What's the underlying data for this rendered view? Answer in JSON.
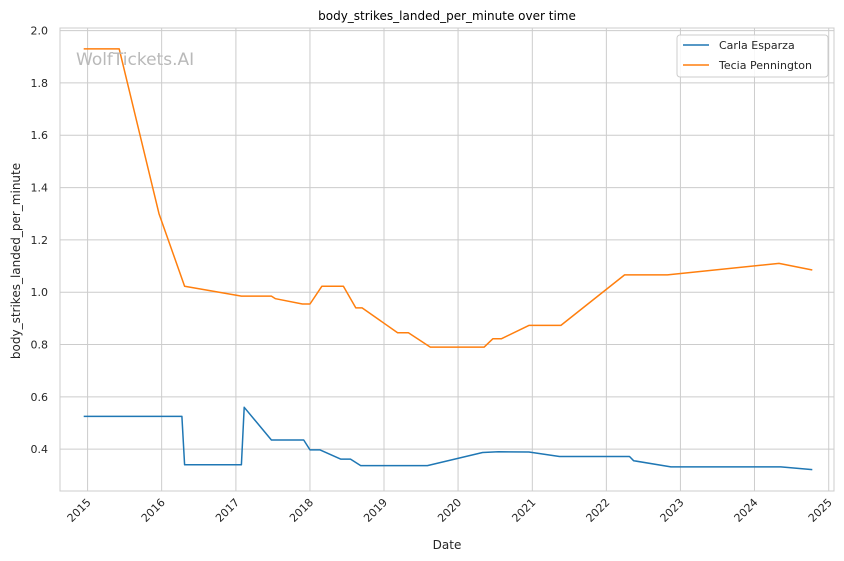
{
  "chart_data": {
    "type": "line",
    "title": "body_strikes_landed_per_minute over time",
    "xlabel": "Date",
    "ylabel": "body_strikes_landed_per_minute",
    "watermark": "WolfTickets.AI",
    "xlim": [
      "2014-08-18",
      "2025-01-27"
    ],
    "ylim": [
      0.24,
      2.01
    ],
    "x_ticks": [
      "2015",
      "2016",
      "2017",
      "2018",
      "2019",
      "2020",
      "2021",
      "2022",
      "2023",
      "2024",
      "2025"
    ],
    "y_ticks": [
      "0.4",
      "0.6",
      "0.8",
      "1.0",
      "1.2",
      "1.4",
      "1.6",
      "1.8",
      "2.0"
    ],
    "grid": true,
    "legend_position": "top-right",
    "series": [
      {
        "name": "Carla Esparza",
        "color": "#1f77b4",
        "points": [
          [
            "2014-12-13",
            0.525
          ],
          [
            "2016-04-10",
            0.525
          ],
          [
            "2016-04-23",
            0.34
          ],
          [
            "2017-01-28",
            0.34
          ],
          [
            "2017-02-11",
            0.56
          ],
          [
            "2017-06-25",
            0.435
          ],
          [
            "2017-12-01",
            0.435
          ],
          [
            "2018-01-01",
            0.397
          ],
          [
            "2018-02-20",
            0.397
          ],
          [
            "2018-06-01",
            0.362
          ],
          [
            "2018-07-20",
            0.362
          ],
          [
            "2018-09-08",
            0.337
          ],
          [
            "2019-04-01",
            0.337
          ],
          [
            "2019-08-03",
            0.337
          ],
          [
            "2020-05-01",
            0.387
          ],
          [
            "2020-07-18",
            0.39
          ],
          [
            "2020-12-15",
            0.389
          ],
          [
            "2021-05-15",
            0.372
          ],
          [
            "2022-03-01",
            0.372
          ],
          [
            "2022-04-25",
            0.372
          ],
          [
            "2022-05-15",
            0.356
          ],
          [
            "2022-11-15",
            0.332
          ],
          [
            "2024-05-10",
            0.332
          ],
          [
            "2024-10-12",
            0.322
          ]
        ]
      },
      {
        "name": "Tecia Pennington",
        "color": "#ff7f0e",
        "points": [
          [
            "2014-12-13",
            1.93
          ],
          [
            "2015-06-06",
            1.93
          ],
          [
            "2015-12-19",
            1.3
          ],
          [
            "2016-04-23",
            1.023
          ],
          [
            "2017-01-28",
            0.985
          ],
          [
            "2017-06-25",
            0.985
          ],
          [
            "2017-07-15",
            0.975
          ],
          [
            "2017-11-25",
            0.955
          ],
          [
            "2018-01-01",
            0.955
          ],
          [
            "2018-03-01",
            1.023
          ],
          [
            "2018-06-15",
            1.023
          ],
          [
            "2018-08-15",
            0.94
          ],
          [
            "2018-09-15",
            0.94
          ],
          [
            "2019-03-09",
            0.845
          ],
          [
            "2019-05-01",
            0.845
          ],
          [
            "2019-08-17",
            0.79
          ],
          [
            "2020-05-09",
            0.79
          ],
          [
            "2020-06-20",
            0.822
          ],
          [
            "2020-08-01",
            0.822
          ],
          [
            "2020-12-15",
            0.873
          ],
          [
            "2021-05-22",
            0.873
          ],
          [
            "2022-04-01",
            1.066
          ],
          [
            "2022-10-29",
            1.066
          ],
          [
            "2024-05-01",
            1.11
          ],
          [
            "2024-10-12",
            1.085
          ]
        ]
      }
    ]
  }
}
